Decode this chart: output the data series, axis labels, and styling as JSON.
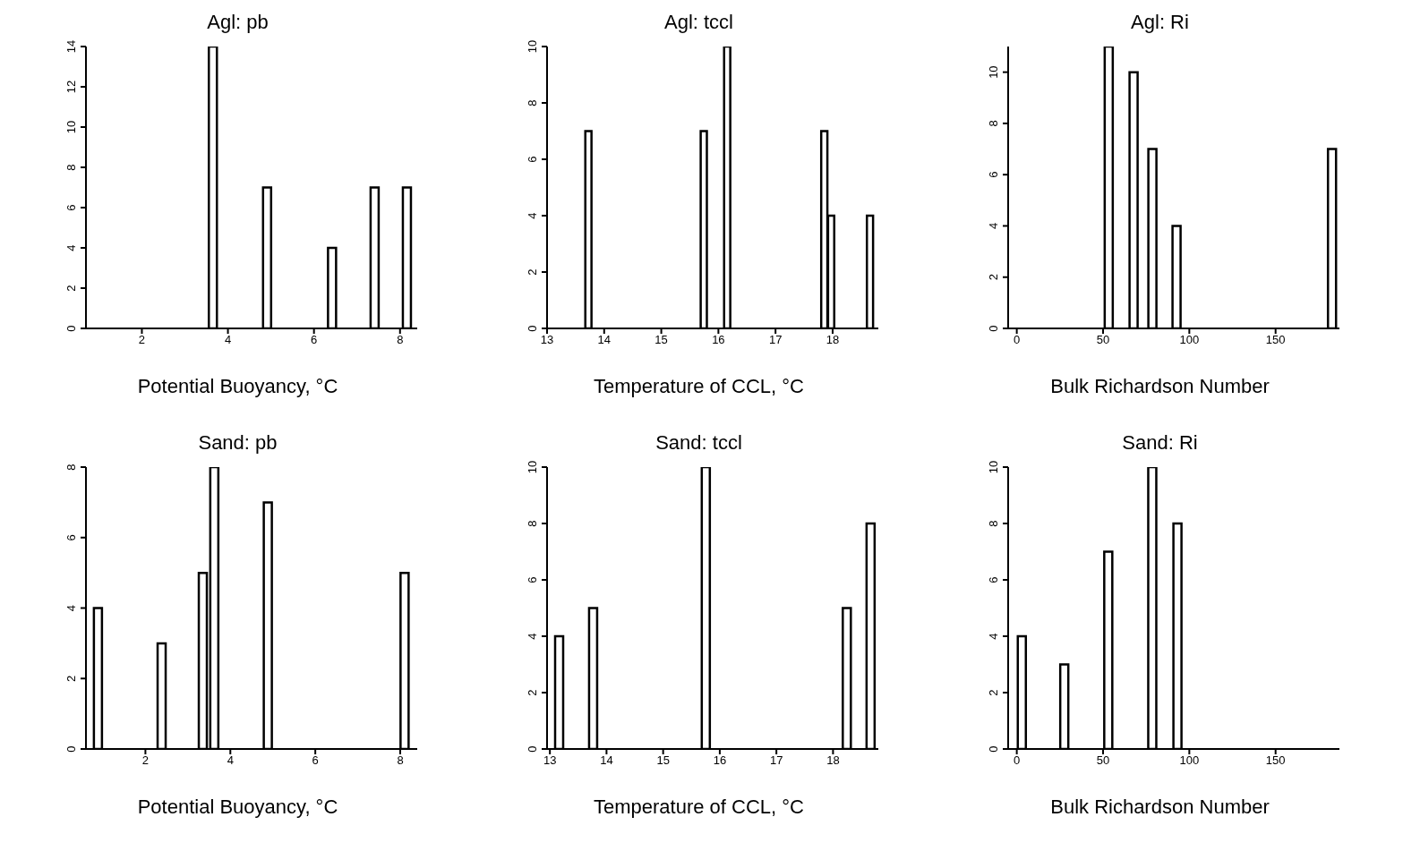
{
  "chart_data": [
    {
      "type": "bar",
      "title": "Agl:  pb",
      "xlabel": "Potential Buoyancy,  °C",
      "x": [
        3.64,
        4.9,
        6.41,
        7.4,
        8.15
      ],
      "values": [
        14,
        7,
        4,
        7,
        7
      ],
      "color": "#000000",
      "xlim": [
        0.7,
        8.4
      ],
      "xticks": [
        2,
        4,
        6,
        8
      ],
      "ylim": [
        0,
        14
      ],
      "yticks": [
        0,
        2,
        4,
        6,
        8,
        10,
        12,
        14
      ]
    },
    {
      "type": "bar",
      "title": "Agl:  tccl",
      "xlabel": "Temperature of CCL,  °C",
      "x": [
        13.73,
        15.75,
        16.16,
        17.86,
        17.98,
        18.66
      ],
      "values": [
        7,
        7,
        10,
        7,
        4,
        4
      ],
      "color": "#000000",
      "xlim": [
        13,
        18.8
      ],
      "xticks": [
        13,
        14,
        15,
        16,
        17,
        18
      ],
      "ylim": [
        0,
        10
      ],
      "yticks": [
        0,
        2,
        4,
        6,
        8,
        10
      ]
    },
    {
      "type": "bar",
      "title": "Agl:  Ri",
      "xlabel": "Bulk Richardson Number",
      "x": [
        53.3,
        67.7,
        78.6,
        92.6,
        182.7
      ],
      "values": [
        11,
        10,
        7,
        4,
        7
      ],
      "color": "#000000",
      "xlim": [
        -5,
        187
      ],
      "xticks": [
        0,
        50,
        100,
        150
      ],
      "ylim": [
        0,
        11
      ],
      "yticks": [
        0,
        2,
        4,
        6,
        8,
        10
      ]
    },
    {
      "type": "bar",
      "title": "Sand:  pb",
      "xlabel": "Potential Buoyancy,  °C",
      "x": [
        0.88,
        2.38,
        3.35,
        3.62,
        4.88,
        8.1
      ],
      "values": [
        4,
        3,
        5,
        8,
        7,
        5
      ],
      "color": "#000000",
      "xlim": [
        0.6,
        8.4
      ],
      "xticks": [
        2,
        4,
        6,
        8
      ],
      "ylim": [
        0,
        8
      ],
      "yticks": [
        0,
        2,
        4,
        6,
        8
      ]
    },
    {
      "type": "bar",
      "title": "Sand:  tccl",
      "xlabel": "Temperature of CCL,  °C",
      "x": [
        13.16,
        13.76,
        15.75,
        18.24,
        18.66
      ],
      "values": [
        4,
        5,
        10,
        5,
        8
      ],
      "color": "#000000",
      "xlim": [
        12.95,
        18.8
      ],
      "xticks": [
        13,
        14,
        15,
        16,
        17,
        18
      ],
      "ylim": [
        0,
        10
      ],
      "yticks": [
        0,
        2,
        4,
        6,
        8,
        10
      ]
    },
    {
      "type": "bar",
      "title": "Sand:  Ri",
      "xlabel": "Bulk Richardson Number",
      "x": [
        2.7,
        27.3,
        52.8,
        78.3,
        92.9
      ],
      "values": [
        4,
        3,
        7,
        10,
        8
      ],
      "color": "#000000",
      "xlim": [
        -5,
        187
      ],
      "xticks": [
        0,
        50,
        100,
        150
      ],
      "ylim": [
        0,
        10
      ],
      "yticks": [
        0,
        2,
        4,
        6,
        8,
        10
      ]
    }
  ]
}
